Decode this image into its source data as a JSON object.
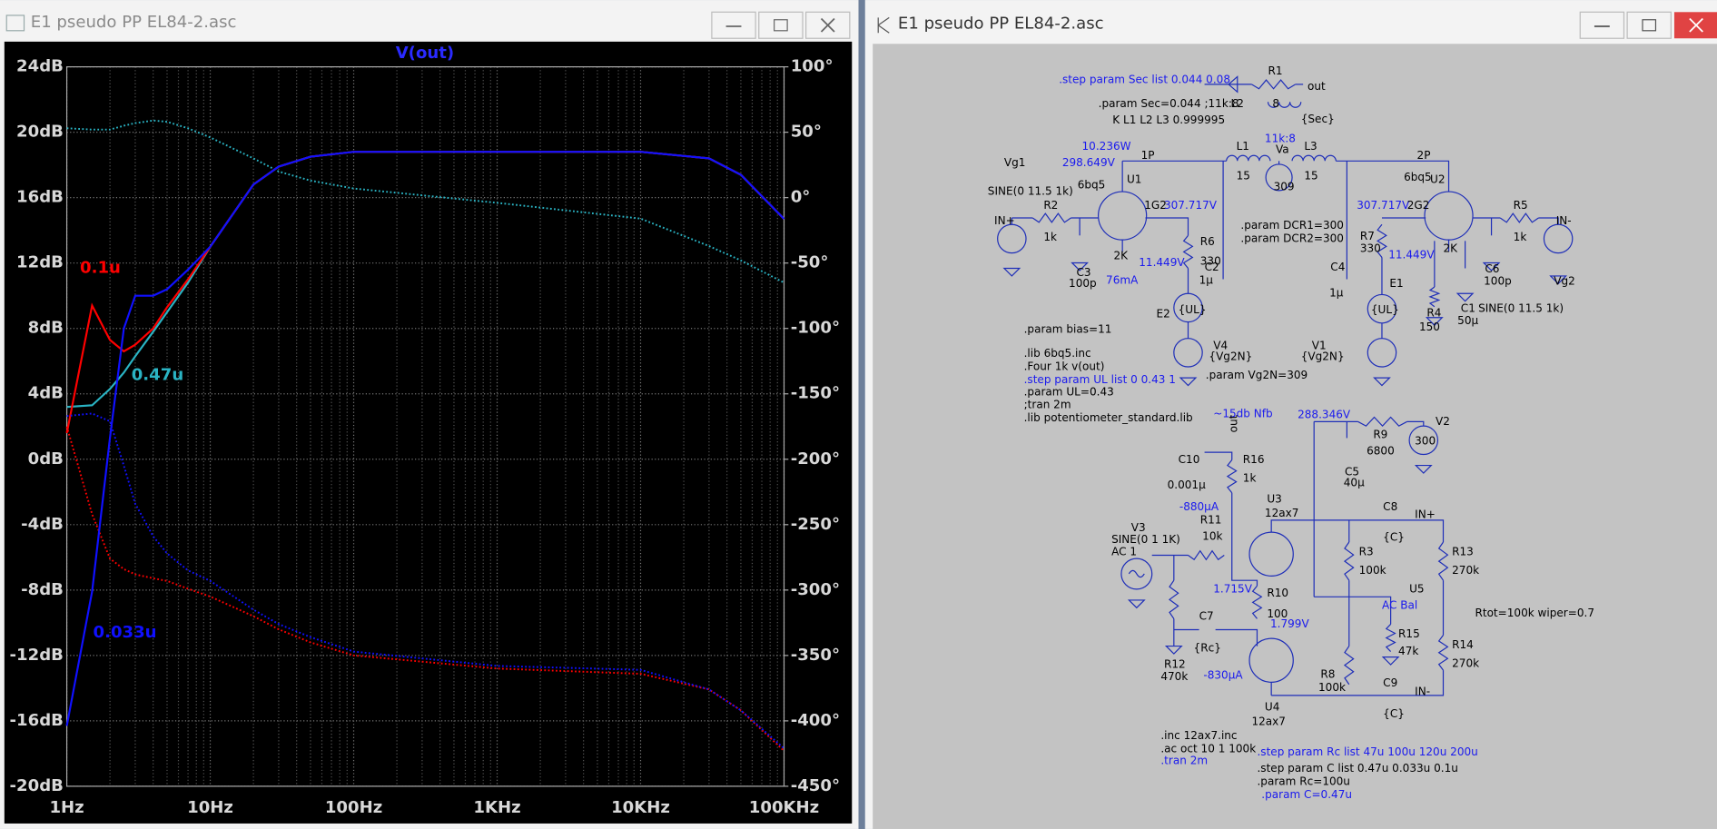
{
  "windows": [
    {
      "title": "E1 pseudo PP EL84-2.asc"
    },
    {
      "title": "E1 pseudo PP EL84-2.asc"
    }
  ],
  "plot": {
    "type": "line",
    "title": "V(out)",
    "log_x": true,
    "grid": true,
    "xlim": [
      1,
      100000
    ],
    "xticks": [
      {
        "value": 1,
        "label": "1Hz"
      },
      {
        "value": 10,
        "label": "10Hz"
      },
      {
        "value": 100,
        "label": "100Hz"
      },
      {
        "value": 1000,
        "label": "1KHz"
      },
      {
        "value": 10000,
        "label": "10KHz"
      },
      {
        "value": 100000,
        "label": "100KHz"
      }
    ],
    "ylim": [
      -20,
      24
    ],
    "yticks": [
      {
        "value": 24,
        "label": "24dB"
      },
      {
        "value": 20,
        "label": "20dB"
      },
      {
        "value": 16,
        "label": "16dB"
      },
      {
        "value": 12,
        "label": "12dB"
      },
      {
        "value": 8,
        "label": "8dB"
      },
      {
        "value": 4,
        "label": "4dB"
      },
      {
        "value": 0,
        "label": "0dB"
      },
      {
        "value": -4,
        "label": "-4dB"
      },
      {
        "value": -8,
        "label": "-8dB"
      },
      {
        "value": -12,
        "label": "-12dB"
      },
      {
        "value": -16,
        "label": "-16dB"
      },
      {
        "value": -20,
        "label": "-20dB"
      }
    ],
    "y2lim": [
      -450,
      100
    ],
    "y2ticks": [
      {
        "value": 100,
        "label": "100°"
      },
      {
        "value": 50,
        "label": "50°"
      },
      {
        "value": 0,
        "label": "0°"
      },
      {
        "value": -50,
        "label": "-50°"
      },
      {
        "value": -100,
        "label": "-100°"
      },
      {
        "value": -150,
        "label": "-150°"
      },
      {
        "value": -200,
        "label": "-200°"
      },
      {
        "value": -250,
        "label": "-250°"
      },
      {
        "value": -300,
        "label": "-300°"
      },
      {
        "value": -350,
        "label": "-350°"
      },
      {
        "value": -400,
        "label": "-400°"
      },
      {
        "value": -450,
        "label": "-450°"
      }
    ],
    "curves": [
      {
        "label": "0.47u",
        "color": "#2ab4c4",
        "x": [
          1,
          1.5,
          2,
          2.5,
          3,
          4,
          5,
          7,
          10,
          20,
          30,
          50,
          100,
          1000,
          10000,
          30000,
          50000,
          100000
        ],
        "magnitude": [
          3.2,
          3.3,
          4.3,
          5.3,
          6.3,
          7.8,
          9.0,
          10.8,
          13.0,
          16.8,
          17.9,
          18.5,
          18.8,
          18.8,
          18.8,
          18.4,
          17.4,
          14.7
        ],
        "phase": [
          53,
          52,
          52,
          55,
          57,
          59,
          58,
          53,
          46,
          30,
          20,
          13,
          7,
          -4,
          -16,
          -37,
          -48,
          -65
        ]
      },
      {
        "label": "0.1u",
        "color": "#ff0000",
        "x": [
          1,
          1.5,
          2,
          2.5,
          3,
          4,
          5,
          7,
          10,
          20,
          30,
          50,
          100,
          1000,
          10000,
          30000,
          50000,
          100000
        ],
        "magnitude": [
          1.6,
          9.4,
          7.3,
          6.6,
          7.0,
          8.0,
          9.3,
          11.0,
          13.0,
          16.8,
          17.9,
          18.5,
          18.8,
          18.8,
          18.8,
          18.4,
          17.4,
          14.7
        ],
        "phase": [
          -175,
          -242,
          -276,
          -284,
          -288,
          -291,
          -293,
          -299,
          -305,
          -320,
          -330,
          -340,
          -350,
          -360,
          -364,
          -376,
          -392,
          -423
        ]
      },
      {
        "label": "0.033u",
        "color": "#1010ff",
        "x": [
          1,
          1.5,
          2,
          2.5,
          3,
          4,
          5,
          7,
          10,
          20,
          30,
          50,
          100,
          1000,
          10000,
          30000,
          50000,
          100000
        ],
        "magnitude": [
          -16.3,
          -8.1,
          1.3,
          8.0,
          10.0,
          10.0,
          10.4,
          11.6,
          13.0,
          16.8,
          17.9,
          18.5,
          18.8,
          18.8,
          18.8,
          18.4,
          17.4,
          14.7
        ],
        "phase": [
          -167,
          -165,
          -171,
          -205,
          -234,
          -259,
          -272,
          -285,
          -293,
          -315,
          -326,
          -336,
          -347,
          -358,
          -361,
          -376,
          -392,
          -421
        ]
      }
    ]
  },
  "schematic": {
    "labels": [
      ".step param Sec list 0.044 0.08",
      "R1",
      "out",
      ".param Sec=0.044 ;11k:8",
      "L2",
      "8",
      "K L1 L2  L3 0.999995",
      "{Sec}",
      "11k:8",
      "10.236W",
      "298.649V",
      "1P",
      "L1",
      "Va",
      "L3",
      "2P",
      "Vg1",
      "15",
      "15",
      "309",
      "6bq5",
      "U1",
      "6bq5",
      "U2",
      "SINE(0 11.5 1k)",
      "1G2",
      "307.717V",
      "307.717V",
      "2G2",
      "R2",
      "R5",
      "IN+",
      "IN-",
      ".param DCR1=300",
      ".param DCR2=300",
      "1k",
      "1k",
      "R6",
      "R7",
      "2K",
      "2K",
      "330",
      "330",
      "11.449V",
      "11.449V",
      "C2",
      "C3",
      "C4",
      "C6",
      "1µ",
      "100p",
      "100p",
      "76mA",
      "E1",
      "Vg2",
      "1µ",
      "{UL}",
      "{UL}",
      "C1",
      "SINE(0 11.5 1k)",
      "R4",
      "E2",
      "50µ",
      "150",
      ".param bias=11",
      "V4",
      "V1",
      "{Vg2N}",
      "{Vg2N}",
      ".lib 6bq5.inc",
      ".Four 1k v(out)",
      ".step param UL list 0 0.43 1",
      ".param Vg2N=309",
      ".param UL=0.43",
      ";tran 2m",
      ".lib potentiometer_standard.lib",
      "~15db Nfb",
      "288.346V",
      "V2",
      "R9",
      "300",
      "out",
      "6800",
      "C10",
      "R16",
      "C5",
      "1k",
      "0.001µ",
      "40µ",
      "-880µA",
      "U3",
      "C8",
      "12ax7",
      "IN+",
      "R11",
      "V3",
      "10k",
      "{C}",
      "SINE(0 1 1K)",
      "AC 1",
      "R3",
      "R13",
      "100k",
      "270k",
      "U5",
      "1.715V",
      "R10",
      "AC Bal",
      "Rtot=100k wiper=0.7",
      "100",
      "C7",
      "1.799V",
      "R15",
      "{Rc}",
      "47k",
      "R14",
      "270k",
      "R12",
      "-830µA",
      "R8",
      "470k",
      "100k",
      "C9",
      "IN-",
      "U4",
      "{C}",
      "12ax7",
      ".inc 12ax7.inc",
      ".ac oct 10 1 100k",
      ".tran 2m",
      ".step param Rc list 47u 100u 120u 200u",
      ".step param C list 0.47u 0.033u 0.1u",
      ".param Rc=100u",
      ".param C=0.47u"
    ]
  }
}
